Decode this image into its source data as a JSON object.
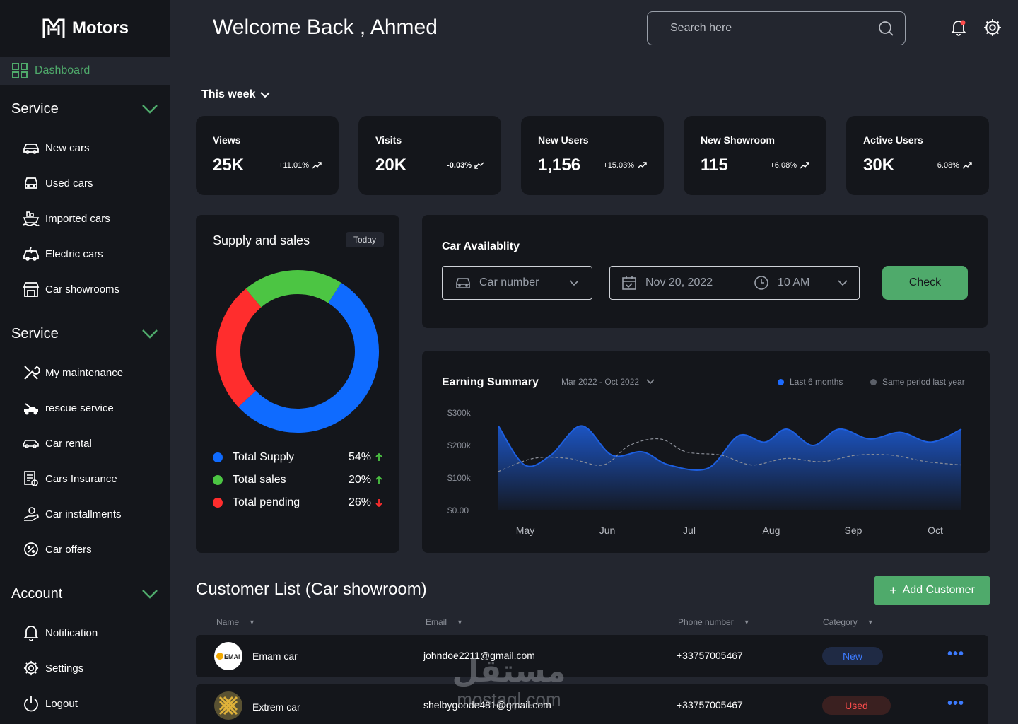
{
  "brand": {
    "name": "Motors"
  },
  "header": {
    "welcome": "Welcome Back , Ahmed",
    "search_placeholder": "Search here"
  },
  "sidebar": {
    "dashboard_label": "Dashboard",
    "sections": [
      {
        "title": "Service",
        "items": [
          {
            "label": "New cars",
            "icon": "car-icon"
          },
          {
            "label": "Used cars",
            "icon": "car-front-icon"
          },
          {
            "label": "Imported cars",
            "icon": "ship-icon"
          },
          {
            "label": "Electric cars",
            "icon": "electric-car-icon"
          },
          {
            "label": "Car showrooms",
            "icon": "store-icon"
          }
        ]
      },
      {
        "title": "Service",
        "items": [
          {
            "label": "My maintenance",
            "icon": "tools-icon"
          },
          {
            "label": "rescue service",
            "icon": "tow-truck-icon"
          },
          {
            "label": "Car rental",
            "icon": "rental-car-icon"
          },
          {
            "label": "Cars Insurance",
            "icon": "insurance-icon"
          },
          {
            "label": "Car installments",
            "icon": "installments-icon"
          },
          {
            "label": "Car offers",
            "icon": "offer-icon"
          }
        ]
      },
      {
        "title": "Account",
        "items": [
          {
            "label": "Notification",
            "icon": "bell-icon"
          },
          {
            "label": "Settings",
            "icon": "gear-icon"
          },
          {
            "label": "Logout",
            "icon": "power-icon"
          }
        ]
      }
    ]
  },
  "period": "This week",
  "stats": [
    {
      "label": "Views",
      "value": "25K",
      "change": "+11.01%",
      "trend": "up"
    },
    {
      "label": "Visits",
      "value": "20K",
      "change": "-0.03%",
      "trend": "down"
    },
    {
      "label": "New Users",
      "value": "1,156",
      "change": "+15.03%",
      "trend": "up"
    },
    {
      "label": "New Showroom",
      "value": "115",
      "change": "+6.08%",
      "trend": "up"
    },
    {
      "label": "Active Users",
      "value": "30K",
      "change": "+6.08%",
      "trend": "up"
    }
  ],
  "supply": {
    "title": "Supply and sales",
    "badge": "Today",
    "items": [
      {
        "label": "Total Supply",
        "pct": "54%",
        "value": 54,
        "color": "#0f6bff",
        "trend": "up"
      },
      {
        "label": "Total sales",
        "pct": "20%",
        "value": 20,
        "color": "#4cc543",
        "trend": "up"
      },
      {
        "label": "Total pending",
        "pct": "26%",
        "value": 26,
        "color": "#ff2d2d",
        "trend": "down"
      }
    ]
  },
  "availability": {
    "title": "Car Availablity",
    "car_placeholder": "Car number",
    "date": "Nov 20, 2022",
    "time": "10 AM",
    "check_label": "Check"
  },
  "earning": {
    "title": "Earning Summary",
    "range": "Mar 2022 - Oct 2022",
    "legend_current": "Last 6 months",
    "legend_previous": "Same period last year"
  },
  "chart_data": {
    "type": "area",
    "x": [
      "May",
      "Jun",
      "Jul",
      "Aug",
      "Sep",
      "Oct"
    ],
    "y_ticks": [
      "$300k",
      "$200k",
      "$100k",
      "$0.00"
    ],
    "ylim": [
      0,
      300000
    ],
    "series": [
      {
        "name": "Last 6 months",
        "color": "#1d5fe0",
        "points": [
          [
            0,
            260000
          ],
          [
            0.3,
            140000
          ],
          [
            0.6,
            170000
          ],
          [
            0.95,
            260000
          ],
          [
            1.3,
            170000
          ],
          [
            1.65,
            180000
          ],
          [
            1.95,
            140000
          ],
          [
            2.4,
            130000
          ],
          [
            2.75,
            230000
          ],
          [
            3.05,
            210000
          ],
          [
            3.3,
            250000
          ],
          [
            3.6,
            200000
          ],
          [
            3.9,
            250000
          ],
          [
            4.25,
            220000
          ],
          [
            4.6,
            240000
          ],
          [
            4.95,
            210000
          ],
          [
            5.3,
            250000
          ]
        ]
      },
      {
        "name": "Same period last year",
        "color": "#8b8f98",
        "points": [
          [
            0,
            120000
          ],
          [
            0.4,
            160000
          ],
          [
            0.8,
            160000
          ],
          [
            1.2,
            140000
          ],
          [
            1.5,
            200000
          ],
          [
            1.85,
            220000
          ],
          [
            2.15,
            180000
          ],
          [
            2.55,
            170000
          ],
          [
            2.9,
            140000
          ],
          [
            3.3,
            160000
          ],
          [
            3.7,
            150000
          ],
          [
            4.1,
            170000
          ],
          [
            4.5,
            170000
          ],
          [
            4.9,
            150000
          ],
          [
            5.3,
            140000
          ]
        ]
      }
    ]
  },
  "customers": {
    "title": "Customer List (Car showroom)",
    "add_label": "Add Customer",
    "columns": [
      "Name",
      "Email",
      "Phone number",
      "Category"
    ],
    "rows": [
      {
        "name": "Emam car",
        "email": "johndoe2211@gmail.com",
        "phone": "+33757005467",
        "category": "New",
        "more": "•••"
      },
      {
        "name": "Extrem car",
        "email": "shelbygoode481@gmail.com",
        "phone": "+33757005467",
        "category": "Used",
        "more": "•••"
      }
    ]
  },
  "watermark": {
    "arabic": "مستقل",
    "latin": "mostaql.com"
  }
}
